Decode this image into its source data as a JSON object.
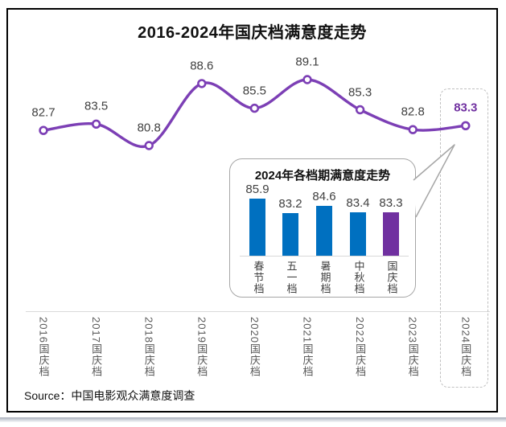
{
  "title": "2016-2024年国庆档满意度走势",
  "source": "Source：中国电影观众满意度调查",
  "colors": {
    "line": "#7C3FB5",
    "highlight": "#7030A0",
    "bar_blue": "#0070C0",
    "bar_purple": "#7030A0",
    "label": "#404040",
    "axis_label": "#595959",
    "axis_line": "#D9D9D9",
    "bubble_border": "#A6A6A6",
    "dashed_border": "#BFBFBF"
  },
  "chart_data": [
    {
      "type": "line",
      "title": "2016-2024年国庆档满意度走势",
      "categories": [
        "2016国庆档",
        "2017国庆档",
        "2018国庆档",
        "2019国庆档",
        "2020国庆档",
        "2021国庆档",
        "2022国庆档",
        "2023国庆档",
        "2024国庆档"
      ],
      "values": [
        82.7,
        83.5,
        80.8,
        88.6,
        85.5,
        89.1,
        85.3,
        82.8,
        83.3
      ],
      "ylim": [
        79,
        91
      ],
      "grid": false,
      "legend": "none",
      "highlight_last_index": 8,
      "annotation": "dashed box around 2024国庆档 point connected by callout to inset bar chart"
    },
    {
      "type": "bar",
      "title": "2024年各档期满意度走势",
      "categories": [
        "春节档",
        "五一档",
        "暑期档",
        "中秋档",
        "国庆档"
      ],
      "values": [
        85.9,
        83.2,
        84.6,
        83.4,
        83.3
      ],
      "bar_colors": [
        "#0070C0",
        "#0070C0",
        "#0070C0",
        "#0070C0",
        "#7030A0"
      ],
      "ylim": [
        75.25,
        87
      ],
      "grid": false,
      "legend": "none"
    }
  ]
}
